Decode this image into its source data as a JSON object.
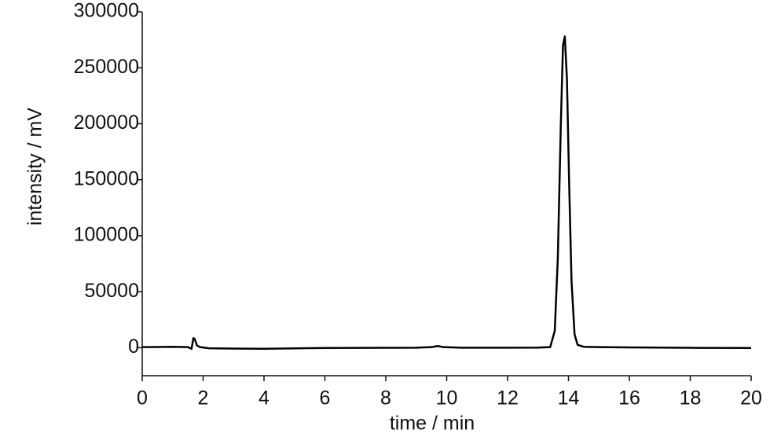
{
  "chart_data": {
    "type": "line",
    "x_label": "time / min",
    "y_label": "intensity / mV",
    "x": [
      0,
      0.5,
      1,
      1.5,
      1.62,
      1.68,
      1.72,
      1.8,
      1.9,
      2.2,
      3,
      4,
      5,
      6,
      7,
      8,
      9,
      9.5,
      9.7,
      9.9,
      10.5,
      12,
      13,
      13.4,
      13.55,
      13.65,
      13.75,
      13.82,
      13.88,
      13.95,
      14.02,
      14.1,
      14.2,
      14.3,
      14.5,
      15,
      16,
      18,
      20
    ],
    "series": [
      {
        "color": "#000000",
        "values": [
          500,
          600,
          800,
          500,
          -1000,
          8500,
          8000,
          2000,
          500,
          -500,
          -800,
          -1000,
          -600,
          -300,
          -200,
          -100,
          0,
          500,
          1500,
          500,
          0,
          0,
          100,
          500,
          15000,
          80000,
          200000,
          270000,
          278000,
          240000,
          150000,
          60000,
          12000,
          2500,
          800,
          500,
          300,
          -100,
          -300
        ]
      }
    ],
    "xlim": [
      0,
      20
    ],
    "xticks": [
      0,
      2,
      4,
      6,
      8,
      10,
      12,
      14,
      16,
      18,
      20
    ],
    "ylim": [
      -25000,
      300000
    ],
    "yticks": [
      0,
      50000,
      100000,
      150000,
      200000,
      250000,
      300000
    ],
    "grid": false
  }
}
